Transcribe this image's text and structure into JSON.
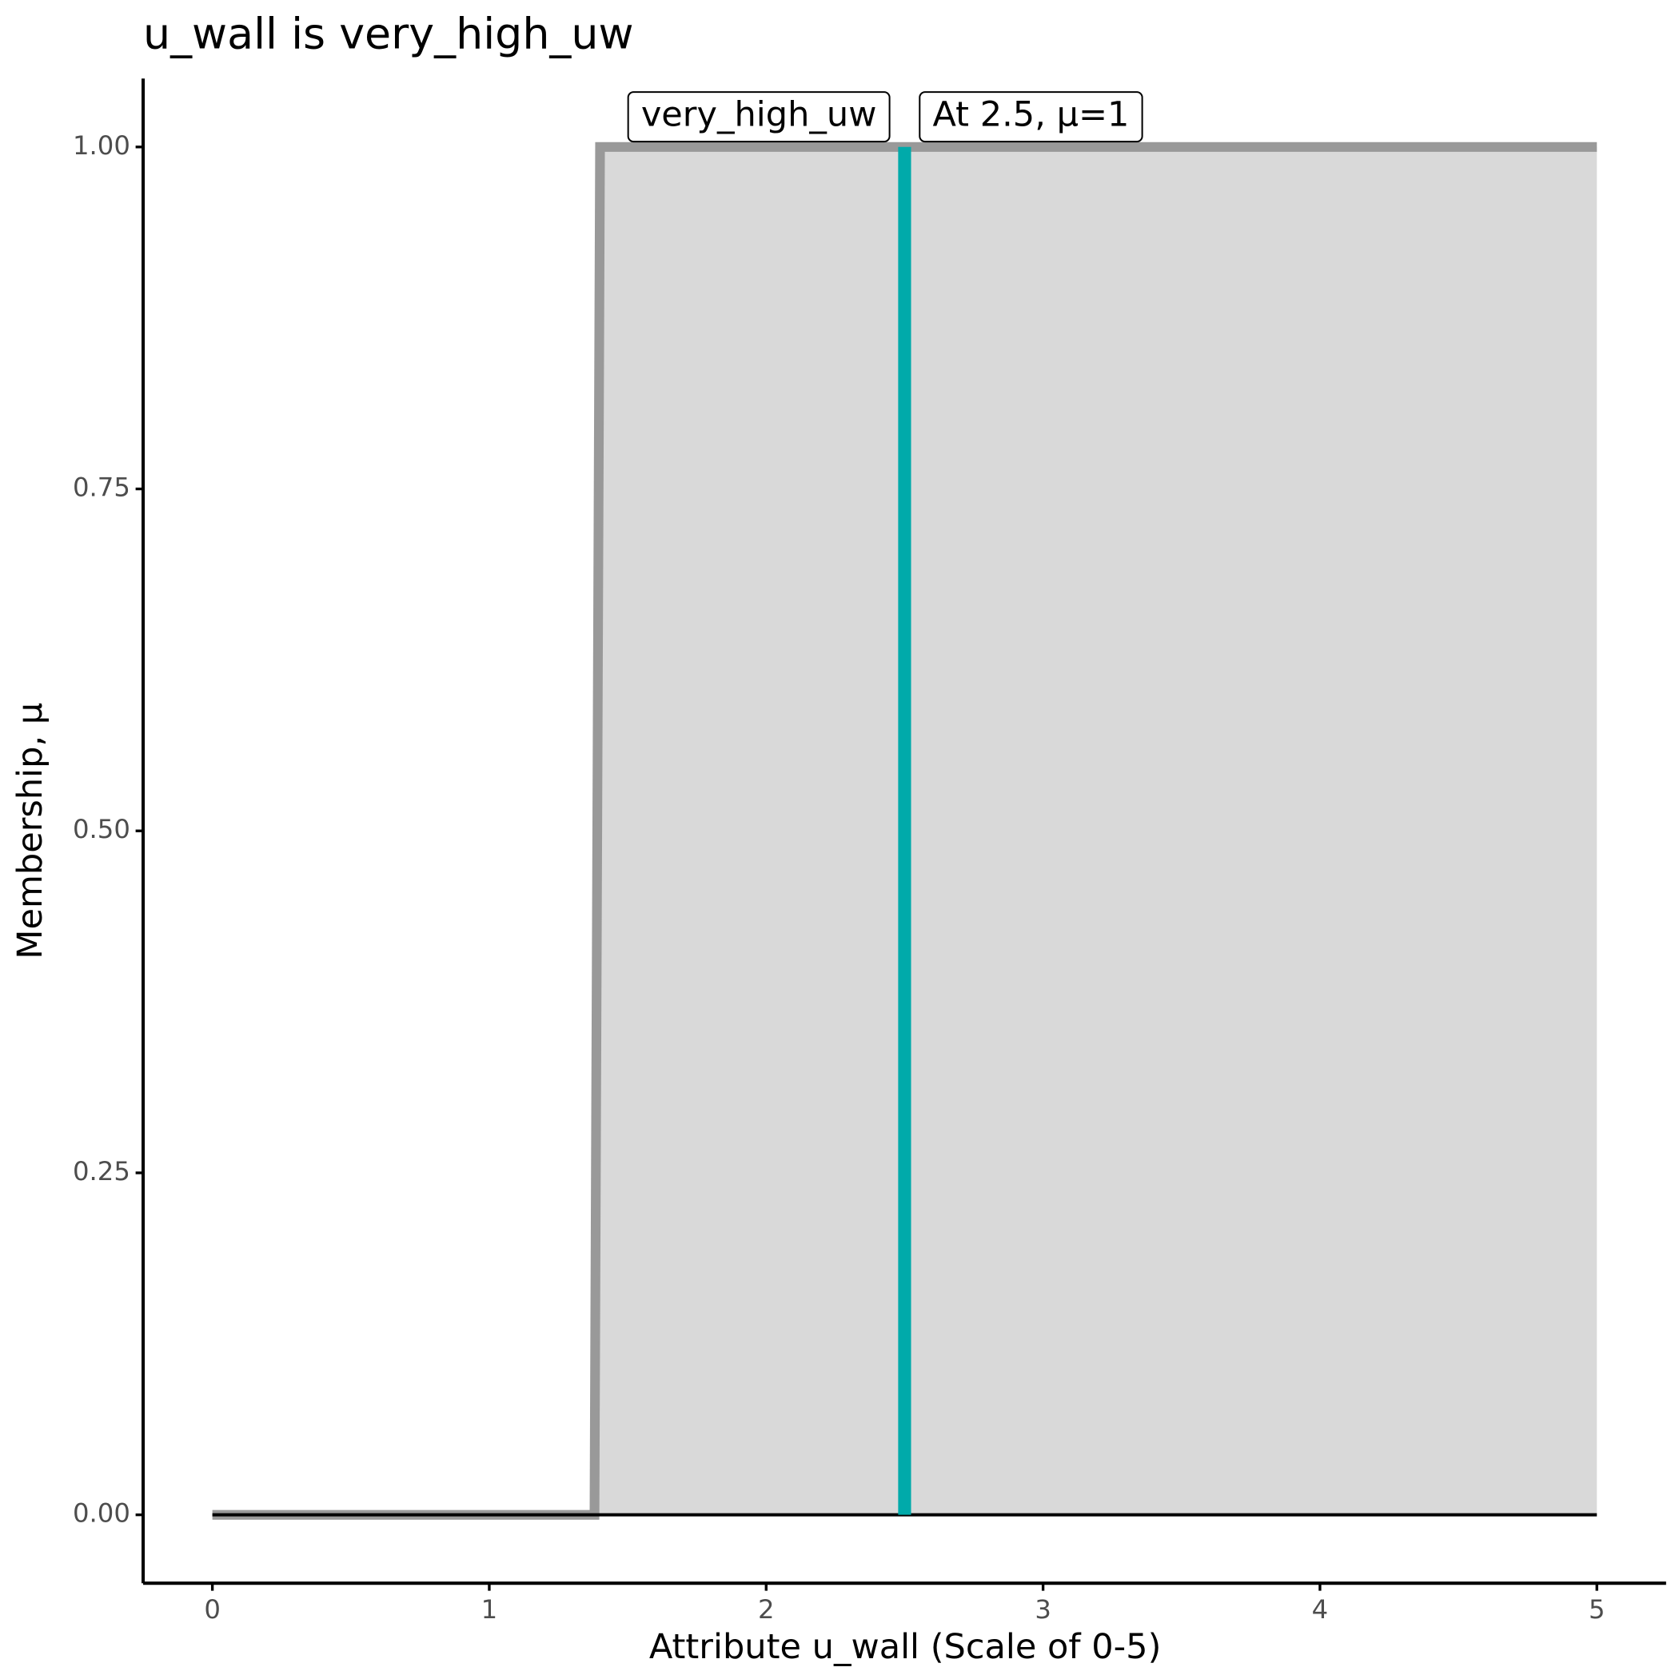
{
  "chart_data": {
    "type": "area",
    "title": "u_wall is very_high_uw",
    "xlabel": "Attribute u_wall (Scale of 0-5)",
    "ylabel": "Membership, μ",
    "x": [
      0,
      1.38,
      1.4,
      5
    ],
    "series": [
      {
        "name": "very_high_uw",
        "color": "#999999",
        "fill": "#d9d9d9",
        "values": [
          0,
          0,
          1,
          1
        ]
      }
    ],
    "marker": {
      "x": 2.5,
      "value": 1,
      "color": "#00aaaa",
      "label": "At 2.5, μ=1"
    },
    "xlim": [
      -0.25,
      5.25
    ],
    "ylim": [
      -0.05,
      1.05
    ],
    "xticks": [
      0,
      1,
      2,
      3,
      4,
      5
    ],
    "yticks": [
      {
        "value": 0,
        "label": "0.00"
      },
      {
        "value": 0.25,
        "label": "0.25"
      },
      {
        "value": 0.5,
        "label": "0.50"
      },
      {
        "value": 0.75,
        "label": "0.75"
      },
      {
        "value": 1,
        "label": "1.00"
      }
    ]
  }
}
